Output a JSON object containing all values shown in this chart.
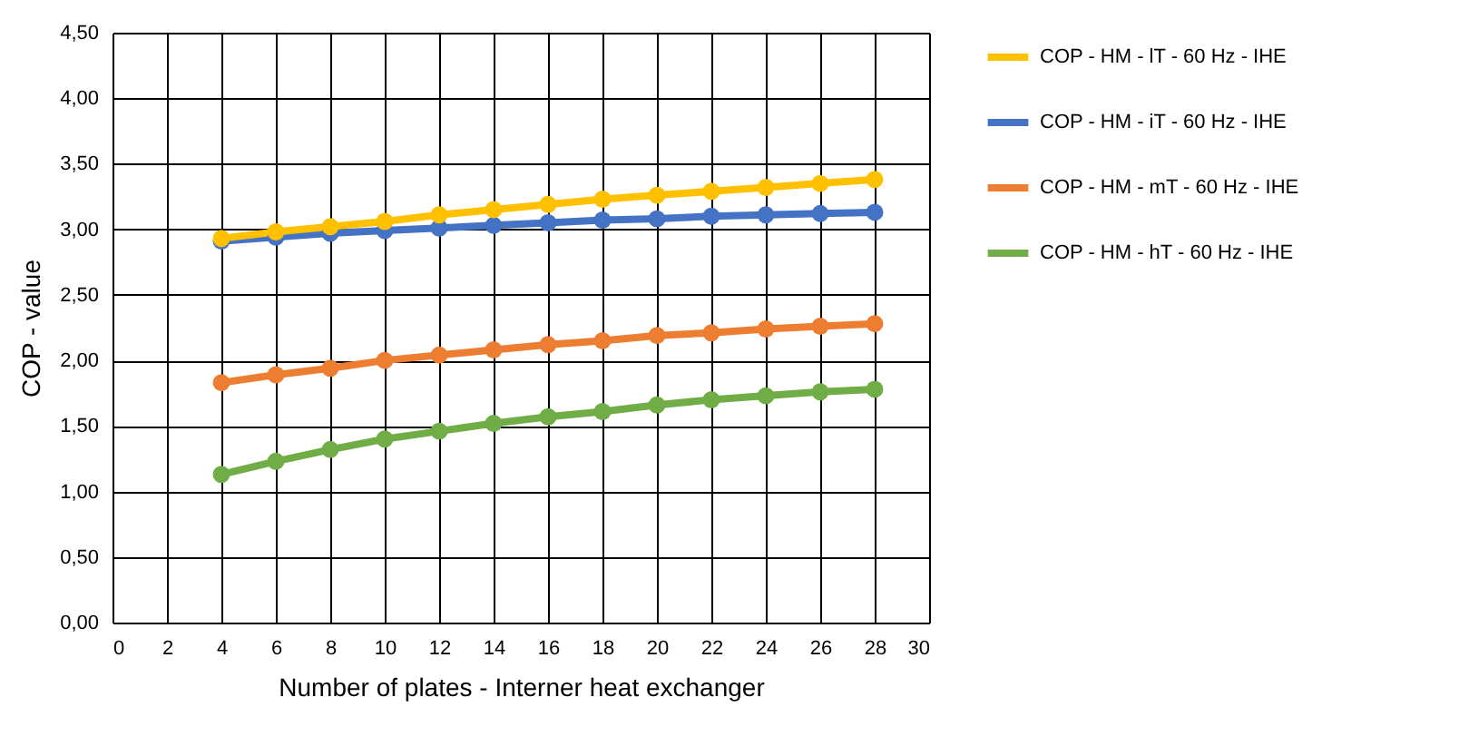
{
  "chart_data": {
    "type": "line",
    "xlabel": "Number of plates - Interner heat exchanger",
    "ylabel": "COP - value",
    "x": [
      4,
      6,
      8,
      10,
      12,
      14,
      16,
      18,
      20,
      22,
      24,
      26,
      28
    ],
    "series": [
      {
        "name": "COP - HM - lT - 60 Hz - IHE",
        "color": "#ffc000",
        "values": [
          2.93,
          2.98,
          3.02,
          3.06,
          3.11,
          3.15,
          3.19,
          3.23,
          3.26,
          3.29,
          3.32,
          3.35,
          3.38
        ]
      },
      {
        "name": "COP - HM - iT - 60 Hz - IHE",
        "color": "#4472c4",
        "values": [
          2.91,
          2.94,
          2.97,
          2.99,
          3.01,
          3.03,
          3.05,
          3.07,
          3.08,
          3.1,
          3.11,
          3.12,
          3.13
        ]
      },
      {
        "name": "COP - HM - mT - 60 Hz - IHE",
        "color": "#ed7d31",
        "values": [
          1.83,
          1.89,
          1.94,
          2.0,
          2.04,
          2.08,
          2.12,
          2.15,
          2.19,
          2.21,
          2.24,
          2.26,
          2.28
        ]
      },
      {
        "name": "COP - HM - hT - 60 Hz - IHE",
        "color": "#70ad47",
        "values": [
          1.13,
          1.23,
          1.32,
          1.4,
          1.46,
          1.52,
          1.57,
          1.61,
          1.66,
          1.7,
          1.73,
          1.76,
          1.78
        ]
      }
    ],
    "xlim": [
      0,
      30
    ],
    "xticks": [
      0,
      2,
      4,
      6,
      8,
      10,
      12,
      14,
      16,
      18,
      20,
      22,
      24,
      26,
      28,
      30
    ],
    "ylim": [
      0,
      4.5
    ],
    "yticks": [
      {
        "value": 0,
        "label": "0,00"
      },
      {
        "value": 0.5,
        "label": "0,50"
      },
      {
        "value": 1,
        "label": "1,00"
      },
      {
        "value": 1.5,
        "label": "1,50"
      },
      {
        "value": 2,
        "label": "2,00"
      },
      {
        "value": 2.5,
        "label": "2,50"
      },
      {
        "value": 3,
        "label": "3,00"
      },
      {
        "value": 3.5,
        "label": "3,50"
      },
      {
        "value": 4,
        "label": "4,00"
      },
      {
        "value": 4.5,
        "label": "4,50"
      }
    ],
    "grid": true,
    "legend": "right",
    "marker": "circle",
    "line_style": "solid"
  }
}
